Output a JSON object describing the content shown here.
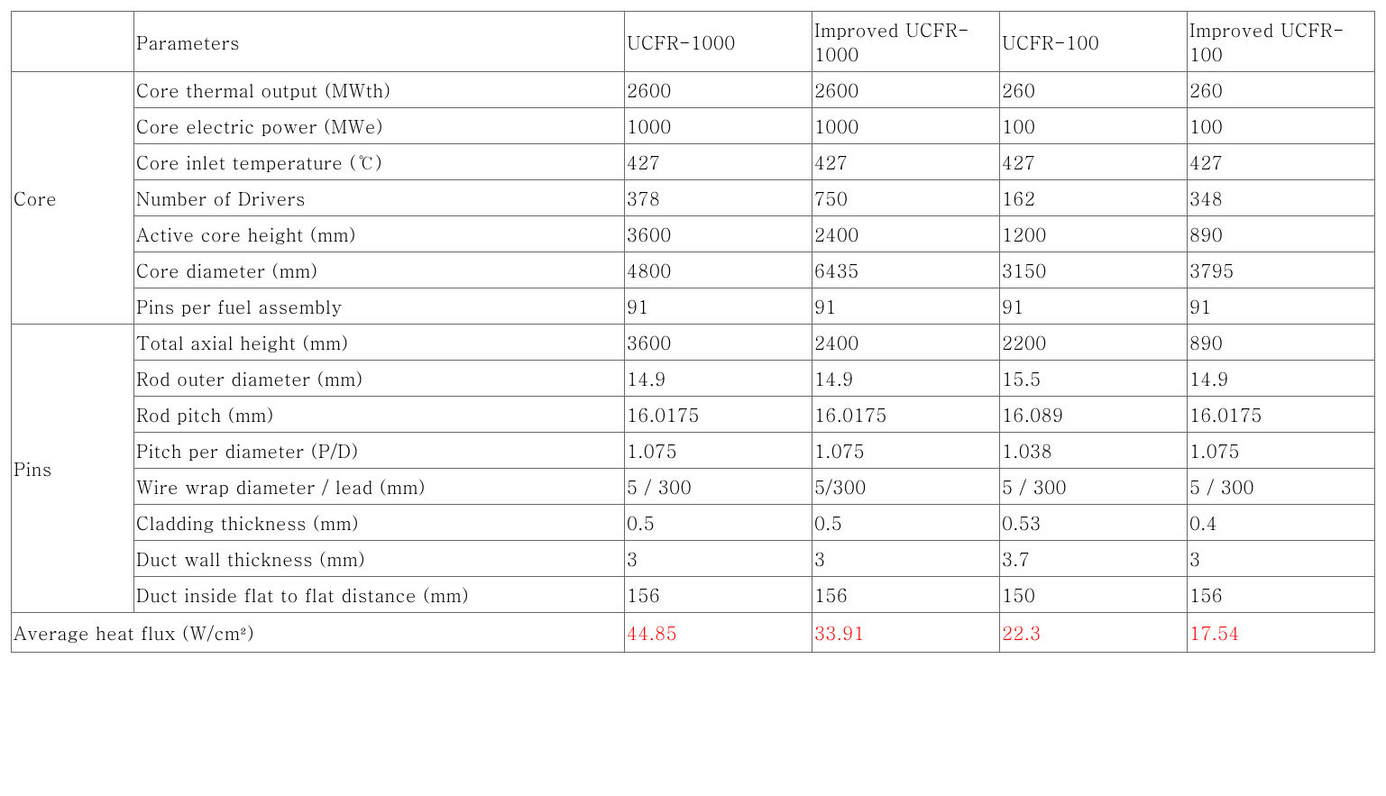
{
  "colors": {
    "text": "#000000",
    "highlight": "#ff0000",
    "border": "#666666",
    "background": "#ffffff"
  },
  "typography": {
    "font_family": "Batang / Times New Roman serif",
    "font_size_pt": 15,
    "font_weight": "normal"
  },
  "table": {
    "type": "table",
    "col_widths_pct": [
      8.5,
      34,
      13,
      13,
      13,
      13
    ],
    "header": {
      "group": "",
      "param": "Parameters",
      "c1": "UCFR-1000",
      "c2": "Improved UCFR-1000",
      "c3": "UCFR-100",
      "c4": "Improved UCFR-100"
    },
    "groups": [
      {
        "label": "Core",
        "rows": [
          {
            "param": "Core thermal output (MWth)",
            "c1": "2600",
            "c2": "2600",
            "c3": "260",
            "c4": "260"
          },
          {
            "param": "Core electric power (MWe)",
            "c1": "1000",
            "c2": "1000",
            "c3": "100",
            "c4": "100"
          },
          {
            "param": "Core inlet temperature (℃)",
            "c1": "427",
            "c2": "427",
            "c3": "427",
            "c4": "427"
          },
          {
            "param": "Number of Drivers",
            "c1": "378",
            "c2": "750",
            "c3": "162",
            "c4": "348"
          },
          {
            "param": "Active core height (mm)",
            "c1": "3600",
            "c2": "2400",
            "c3": "1200",
            "c4": "890"
          },
          {
            "param": "Core diameter (mm)",
            "c1": "4800",
            "c2": "6435",
            "c3": "3150",
            "c4": "3795"
          },
          {
            "param": "Pins per fuel assembly",
            "c1": "91",
            "c2": "91",
            "c3": "91",
            "c4": "91"
          }
        ]
      },
      {
        "label": "Pins",
        "rows": [
          {
            "param": "Total axial height (mm)",
            "c1": "3600",
            "c2": "2400",
            "c3": "2200",
            "c4": "890"
          },
          {
            "param": "Rod outer diameter (mm)",
            "c1": "14.9",
            "c2": "14.9",
            "c3": "15.5",
            "c4": "14.9"
          },
          {
            "param": "Rod pitch (mm)",
            "c1": "16.0175",
            "c2": "16.0175",
            "c3": "16.089",
            "c4": "16.0175"
          },
          {
            "param": "Pitch per diameter (P/D)",
            "c1": "1.075",
            "c2": "1.075",
            "c3": "1.038",
            "c4": "1.075"
          },
          {
            "param": "Wire wrap diameter  / lead (mm)",
            "c1": "5 / 300",
            "c2": "5/300",
            "c3": "5 / 300",
            "c4": "5 / 300"
          },
          {
            "param": "Cladding thickness (mm)",
            "c1": "0.5",
            "c2": "0.5",
            "c3": "0.53",
            "c4": "0.4"
          },
          {
            "param": "Duct wall thickness (mm)",
            "c1": "3",
            "c2": "3",
            "c3": "3.7",
            "c4": "3"
          },
          {
            "param": "Duct inside flat  to flat distance (mm)",
            "c1": "156",
            "c2": "156",
            "c3": "150",
            "c4": "156"
          }
        ]
      }
    ],
    "footer": {
      "param": "Average heat flux (W/cm²)",
      "c1": "44.85",
      "c2": "33.91",
      "c3": "22.3",
      "c4": "17.54",
      "highlight": true
    }
  }
}
